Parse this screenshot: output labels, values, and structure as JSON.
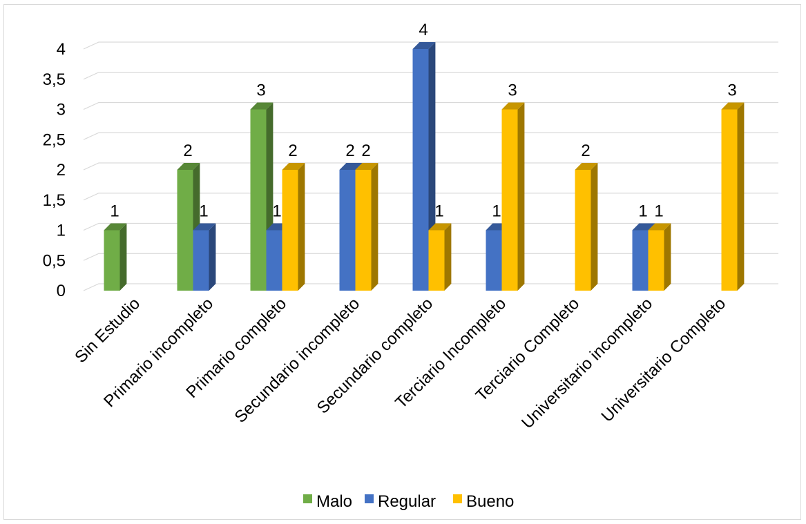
{
  "chart_data": {
    "type": "bar",
    "style": "3d-clustered-column",
    "categories": [
      "Sin Estudio",
      "Primario incompleto",
      "Primario completo",
      "Secundario incompleto",
      "Secundario completo",
      "Terciario Incompleto",
      "Terciario Completo",
      "Universitario incompleto",
      "Universitario Completo"
    ],
    "series": [
      {
        "name": "Malo",
        "color": "#70ad47",
        "values": [
          1,
          2,
          3,
          null,
          null,
          null,
          null,
          null,
          null
        ]
      },
      {
        "name": "Regular",
        "color": "#4472c4",
        "values": [
          null,
          1,
          1,
          2,
          4,
          1,
          null,
          1,
          null
        ]
      },
      {
        "name": "Bueno",
        "color": "#ffc000",
        "values": [
          null,
          null,
          2,
          2,
          1,
          3,
          2,
          1,
          3
        ]
      }
    ],
    "ylim": [
      0,
      4
    ],
    "yticks": [
      "0",
      "0,5",
      "1",
      "1,5",
      "2",
      "2,5",
      "3",
      "3,5",
      "4"
    ],
    "grid": true,
    "data_labels": true,
    "legend_position": "bottom",
    "title": "",
    "xlabel": "",
    "ylabel": ""
  }
}
